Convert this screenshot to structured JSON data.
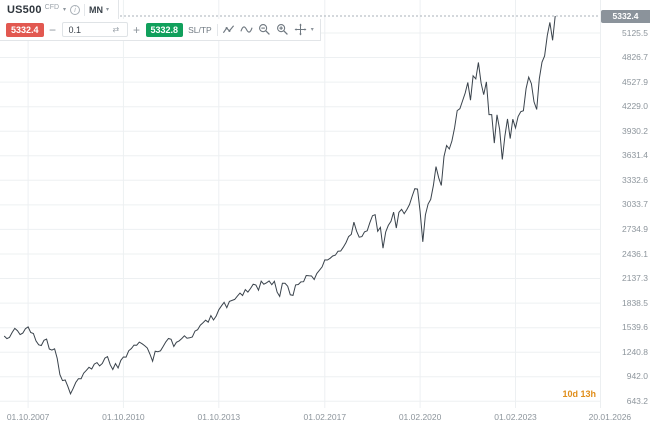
{
  "colors": {
    "sell-red": "#e25850",
    "buy-green": "#11a05c",
    "badge-gray": "#8b939b",
    "countdown-orange": "#e08e1b",
    "line-color": "#3a434c",
    "grid-color": "#edf0f2",
    "axis-text": "#8d959c"
  },
  "instrument": {
    "symbol": "US500",
    "type": "CFD",
    "timeframe": "MN",
    "sell_price": "5332.4",
    "buy_price": "5332.8",
    "volume": "0.1",
    "sltp_label": "SL/TP",
    "minus_label": "−",
    "plus_label": "+"
  },
  "icons": {
    "info": "i",
    "caret_down": "▾",
    "swap": "⇄"
  },
  "axis_badge": "5332.4",
  "countdown": "10d 13h",
  "chart_data": {
    "type": "line",
    "title": "US500 CFD — Monthly (MN)",
    "xlabel": "",
    "ylabel": "",
    "grid": true,
    "legend": false,
    "ylim": [
      562,
      5527
    ],
    "x_base": "2007-10",
    "x_domain_months": [
      -10.6,
      215.9
    ],
    "current_price": 5332.4,
    "y_ticks": [
      5125.5,
      4826.7,
      4527.9,
      4229.0,
      3930.2,
      3631.4,
      3332.6,
      3033.7,
      2734.9,
      2436.1,
      2137.3,
      1838.5,
      1539.6,
      1240.8,
      942.0,
      643.2
    ],
    "x_ticks": [
      {
        "label": "01.10.2007",
        "date": "2007-10-01"
      },
      {
        "label": "01.10.2010",
        "date": "2010-10-01"
      },
      {
        "label": "01.10.2013",
        "date": "2013-10-01"
      },
      {
        "label": "01.02.2017",
        "date": "2017-02-01"
      },
      {
        "label": "01.02.2020",
        "date": "2020-02-01"
      },
      {
        "label": "01.02.2023",
        "date": "2023-02-01"
      },
      {
        "label": "20.01.2026",
        "date": "2026-01-20"
      }
    ],
    "series": {
      "name": "US500",
      "interval": "monthly",
      "start": "2007-01",
      "values": [
        1438,
        1407,
        1421,
        1482,
        1531,
        1503,
        1455,
        1474,
        1527,
        1549,
        1481,
        1468,
        1379,
        1331,
        1323,
        1386,
        1400,
        1280,
        1267,
        1283,
        1166,
        969,
        896,
        903,
        826,
        735,
        798,
        873,
        919,
        919,
        987,
        1021,
        1057,
        1036,
        1096,
        1115,
        1074,
        1104,
        1169,
        1187,
        1089,
        1031,
        1102,
        1049,
        1141,
        1183,
        1181,
        1258,
        1286,
        1327,
        1326,
        1364,
        1345,
        1321,
        1292,
        1219,
        1131,
        1253,
        1247,
        1258,
        1312,
        1366,
        1408,
        1398,
        1310,
        1362,
        1379,
        1407,
        1441,
        1412,
        1416,
        1426,
        1498,
        1515,
        1569,
        1598,
        1631,
        1606,
        1686,
        1633,
        1682,
        1757,
        1806,
        1848,
        1783,
        1859,
        1872,
        1884,
        1924,
        1960,
        1931,
        2003,
        1972,
        2018,
        2068,
        2059,
        1995,
        2105,
        2068,
        2086,
        2107,
        2063,
        2104,
        1972,
        1920,
        2079,
        2080,
        2044,
        1940,
        1932,
        2060,
        2065,
        2097,
        2099,
        2174,
        2171,
        2168,
        2126,
        2199,
        2239,
        2279,
        2364,
        2363,
        2384,
        2412,
        2423,
        2470,
        2472,
        2519,
        2575,
        2648,
        2674,
        2824,
        2714,
        2641,
        2648,
        2705,
        2718,
        2816,
        2902,
        2914,
        2712,
        2760,
        2507,
        2704,
        2784,
        2834,
        2946,
        2752,
        2942,
        2980,
        2926,
        2977,
        3038,
        3141,
        3231,
        3226,
        2954,
        2585,
        2912,
        3044,
        3100,
        3271,
        3500,
        3363,
        3270,
        3622,
        3756,
        3714,
        3811,
        3973,
        4181,
        4204,
        4298,
        4395,
        4523,
        4308,
        4605,
        4567,
        4766,
        4516,
        4374,
        4530,
        4132,
        4132,
        3785,
        4130,
        3955,
        3586,
        3872,
        4080,
        3840,
        4077,
        3970,
        4109,
        4169,
        4180,
        4450,
        4589,
        4508,
        4288,
        4194,
        4568,
        4770,
        4846,
        5096,
        5254,
        5036,
        5332.4
      ]
    }
  }
}
